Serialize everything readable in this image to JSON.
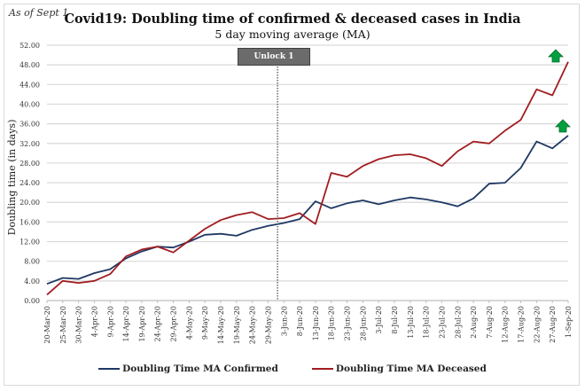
{
  "chart_data": {
    "type": "line",
    "title": "Covid19: Doubling time of confirmed & deceased cases in India",
    "subtitle": "5 day moving average (MA)",
    "note": "As of Sept 1",
    "xlabel": "",
    "ylabel": "Doubling time (in days)",
    "ylim": [
      0,
      52
    ],
    "yticks": [
      "0.00",
      "4.00",
      "8.00",
      "12.00",
      "16.00",
      "20.00",
      "24.00",
      "28.00",
      "32.00",
      "36.00",
      "40.00",
      "44.00",
      "48.00",
      "52.00"
    ],
    "grid": true,
    "legend_position": "bottom",
    "categories": [
      "20-Mar-20",
      "25-Mar-20",
      "30-Mar-20",
      "4-Apr-20",
      "9-Apr-20",
      "14-Apr-20",
      "19-Apr-20",
      "24-Apr-20",
      "29-Apr-20",
      "4-May-20",
      "9-May-20",
      "14-May-20",
      "19-May-20",
      "24-May-20",
      "29-May-20",
      "3-Jun-20",
      "8-Jun-20",
      "13-Jun-20",
      "18-Jun-20",
      "23-Jun-20",
      "28-Jun-20",
      "3-Jul-20",
      "8-Jul-20",
      "13-Jul-20",
      "18-Jul-20",
      "23-Jul-20",
      "28-Jul-20",
      "2-Aug-20",
      "7-Aug-20",
      "12-Aug-20",
      "17-Aug-20",
      "22-Aug-20",
      "27-Aug-20",
      "1-Sep-20"
    ],
    "series": [
      {
        "name": "Doubling Time MA Confirmed",
        "color": "#1f3864",
        "values": [
          3.4,
          4.6,
          4.4,
          5.6,
          6.4,
          8.6,
          10.0,
          11.0,
          10.8,
          12.0,
          13.4,
          13.6,
          13.2,
          14.4,
          15.2,
          15.8,
          16.6,
          20.2,
          18.8,
          19.8,
          20.4,
          19.6,
          20.4,
          21.0,
          20.6,
          20.0,
          19.2,
          20.8,
          23.8,
          24.0,
          27.0,
          32.4,
          31.0,
          33.6
        ]
      },
      {
        "name": "Doubling Time MA Deceased",
        "color": "#a11d21",
        "values": [
          1.2,
          4.0,
          3.6,
          4.0,
          5.4,
          9.0,
          10.4,
          11.0,
          9.8,
          12.2,
          14.6,
          16.4,
          17.4,
          18.0,
          16.6,
          16.8,
          17.8,
          15.6,
          26.0,
          25.2,
          27.4,
          28.8,
          29.6,
          29.8,
          29.0,
          27.4,
          30.4,
          32.4,
          32.0,
          34.6,
          36.8,
          43.0,
          41.8,
          48.6
        ]
      }
    ],
    "annotations": [
      {
        "label": "Unlock 1",
        "x": "1-Jun-20",
        "style": "dotted vertical line with label box"
      },
      {
        "label": "up-arrow",
        "series": "Doubling Time MA Deceased",
        "color": "#00a040"
      },
      {
        "label": "up-arrow",
        "series": "Doubling Time MA Confirmed",
        "color": "#00a040"
      }
    ]
  }
}
